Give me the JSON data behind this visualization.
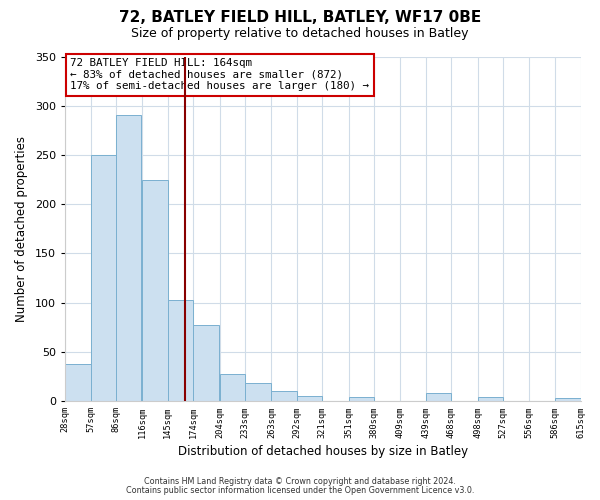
{
  "title": "72, BATLEY FIELD HILL, BATLEY, WF17 0BE",
  "subtitle": "Size of property relative to detached houses in Batley",
  "xlabel": "Distribution of detached houses by size in Batley",
  "ylabel": "Number of detached properties",
  "bar_color": "#cce0f0",
  "bar_edge_color": "#7ab0d0",
  "bin_labels": [
    "28sqm",
    "57sqm",
    "86sqm",
    "116sqm",
    "145sqm",
    "174sqm",
    "204sqm",
    "233sqm",
    "263sqm",
    "292sqm",
    "321sqm",
    "351sqm",
    "380sqm",
    "409sqm",
    "439sqm",
    "468sqm",
    "498sqm",
    "527sqm",
    "556sqm",
    "586sqm",
    "615sqm"
  ],
  "bin_values": [
    38,
    250,
    291,
    225,
    103,
    77,
    28,
    18,
    10,
    5,
    0,
    4,
    0,
    0,
    8,
    0,
    4,
    0,
    0,
    3,
    0
  ],
  "bin_edges": [
    28,
    57,
    86,
    116,
    145,
    174,
    204,
    233,
    263,
    292,
    321,
    351,
    380,
    409,
    439,
    468,
    498,
    527,
    556,
    586,
    615
  ],
  "ylim": [
    0,
    350
  ],
  "yticks": [
    0,
    50,
    100,
    150,
    200,
    250,
    300,
    350
  ],
  "vline_x": 164,
  "vline_color": "#880000",
  "annotation_title": "72 BATLEY FIELD HILL: 164sqm",
  "annotation_line1": "← 83% of detached houses are smaller (872)",
  "annotation_line2": "17% of semi-detached houses are larger (180) →",
  "annotation_box_color": "#ffffff",
  "annotation_box_edge_color": "#cc0000",
  "footer1": "Contains HM Land Registry data © Crown copyright and database right 2024.",
  "footer2": "Contains public sector information licensed under the Open Government Licence v3.0.",
  "background_color": "#ffffff"
}
